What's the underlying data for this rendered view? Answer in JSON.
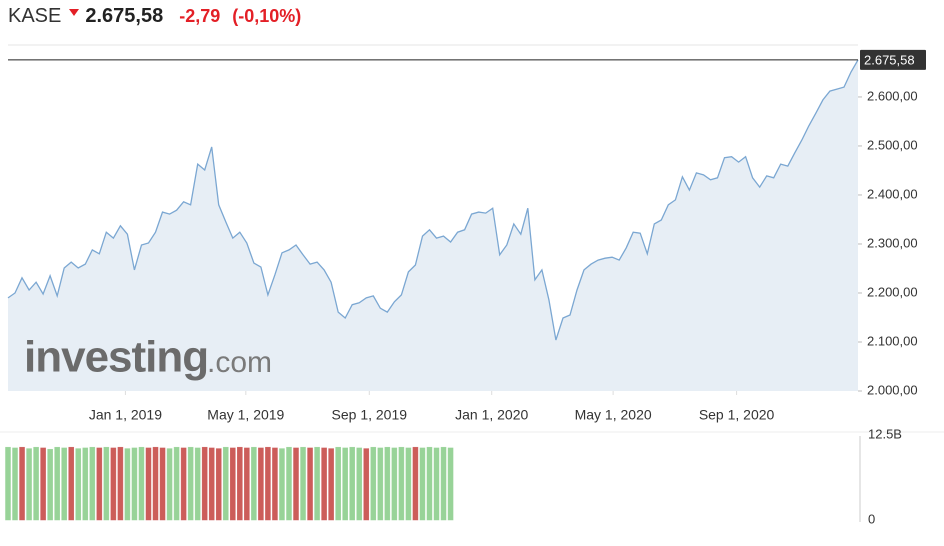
{
  "chart_data": {
    "type": "area",
    "title": "KASE",
    "last_price": {
      "value": 2675.58,
      "label": "2.675,58"
    },
    "change": "-2,79",
    "change_pct": "(-0,10%)",
    "watermark": {
      "brand": "investing",
      "suffix": ".com"
    },
    "x": [
      "2018-09-06",
      "2018-09-13",
      "2018-09-20",
      "2018-09-27",
      "2018-10-04",
      "2018-10-11",
      "2018-10-18",
      "2018-10-25",
      "2018-11-01",
      "2018-11-08",
      "2018-11-15",
      "2018-11-22",
      "2018-11-29",
      "2018-12-06",
      "2018-12-13",
      "2018-12-20",
      "2018-12-27",
      "2019-01-03",
      "2019-01-10",
      "2019-01-17",
      "2019-01-24",
      "2019-01-31",
      "2019-02-07",
      "2019-02-14",
      "2019-02-21",
      "2019-02-28",
      "2019-03-07",
      "2019-03-14",
      "2019-03-21",
      "2019-03-28",
      "2019-04-04",
      "2019-04-11",
      "2019-04-18",
      "2019-04-25",
      "2019-05-02",
      "2019-05-09",
      "2019-05-16",
      "2019-05-23",
      "2019-05-30",
      "2019-06-06",
      "2019-06-13",
      "2019-06-20",
      "2019-06-27",
      "2019-07-04",
      "2019-07-11",
      "2019-07-18",
      "2019-07-25",
      "2019-08-01",
      "2019-08-08",
      "2019-08-15",
      "2019-08-22",
      "2019-08-29",
      "2019-09-05",
      "2019-09-12",
      "2019-09-19",
      "2019-09-26",
      "2019-10-03",
      "2019-10-10",
      "2019-10-17",
      "2019-10-24",
      "2019-10-31",
      "2019-11-07",
      "2019-11-14",
      "2019-11-21",
      "2019-11-28",
      "2019-12-05",
      "2019-12-12",
      "2019-12-19",
      "2019-12-26",
      "2020-01-02",
      "2020-01-09",
      "2020-01-16",
      "2020-01-23",
      "2020-01-30",
      "2020-02-06",
      "2020-02-13",
      "2020-02-20",
      "2020-02-27",
      "2020-03-05",
      "2020-03-12",
      "2020-03-19",
      "2020-03-26",
      "2020-04-02",
      "2020-04-09",
      "2020-04-16",
      "2020-04-23",
      "2020-04-30",
      "2020-05-07",
      "2020-05-14",
      "2020-05-21",
      "2020-05-28",
      "2020-06-04",
      "2020-06-11",
      "2020-06-18",
      "2020-06-25",
      "2020-07-02",
      "2020-07-09",
      "2020-07-16",
      "2020-07-23",
      "2020-07-30",
      "2020-08-06",
      "2020-08-13",
      "2020-08-20",
      "2020-08-27",
      "2020-09-03",
      "2020-09-10",
      "2020-09-17",
      "2020-09-24",
      "2020-10-01",
      "2020-10-08",
      "2020-10-15",
      "2020-10-22",
      "2020-10-29",
      "2020-11-05",
      "2020-11-12",
      "2020-11-19",
      "2020-11-26",
      "2020-12-03",
      "2020-12-10",
      "2020-12-17",
      "2020-12-24",
      "2020-12-31"
    ],
    "series": [
      {
        "name": "KASE",
        "color": "#7ba7d2",
        "fill": "#e7eef5",
        "values": [
          2190,
          2200,
          2231,
          2206,
          2222,
          2198,
          2235,
          2194,
          2251,
          2263,
          2251,
          2259,
          2288,
          2280,
          2324,
          2312,
          2337,
          2320,
          2247,
          2298,
          2302,
          2324,
          2365,
          2361,
          2369,
          2386,
          2380,
          2463,
          2451,
          2498,
          2380,
          2345,
          2312,
          2324,
          2302,
          2261,
          2253,
          2196,
          2237,
          2282,
          2288,
          2298,
          2278,
          2259,
          2263,
          2247,
          2222,
          2161,
          2149,
          2176,
          2180,
          2190,
          2194,
          2169,
          2161,
          2182,
          2196,
          2243,
          2257,
          2316,
          2329,
          2312,
          2316,
          2304,
          2324,
          2329,
          2361,
          2365,
          2363,
          2373,
          2278,
          2298,
          2341,
          2320,
          2373,
          2227,
          2247,
          2186,
          2104,
          2149,
          2155,
          2206,
          2247,
          2259,
          2267,
          2271,
          2273,
          2267,
          2292,
          2324,
          2322,
          2280,
          2341,
          2349,
          2380,
          2390,
          2437,
          2410,
          2445,
          2441,
          2431,
          2435,
          2476,
          2478,
          2467,
          2478,
          2435,
          2416,
          2439,
          2435,
          2463,
          2459,
          2486,
          2512,
          2541,
          2567,
          2594,
          2612,
          2616,
          2620,
          2651,
          2675.58
        ]
      }
    ],
    "xlim": [
      "2018-09-06",
      "2020-12-31"
    ],
    "xticks": [
      {
        "value": "2019-01-01",
        "label": "Jan 1, 2019"
      },
      {
        "value": "2019-05-01",
        "label": "May 1, 2019"
      },
      {
        "value": "2019-09-01",
        "label": "Sep 1, 2019"
      },
      {
        "value": "2020-01-01",
        "label": "Jan 1, 2020"
      },
      {
        "value": "2020-05-01",
        "label": "May 1, 2020"
      },
      {
        "value": "2020-09-01",
        "label": "Sep 1, 2020"
      }
    ],
    "ylim": [
      2000,
      2706
    ],
    "yticks": [
      {
        "value": 2000,
        "label": "2.000,00"
      },
      {
        "value": 2100,
        "label": "2.100,00"
      },
      {
        "value": 2200,
        "label": "2.200,00"
      },
      {
        "value": 2300,
        "label": "2.300,00"
      },
      {
        "value": 2400,
        "label": "2.400,00"
      },
      {
        "value": 2500,
        "label": "2.500,00"
      },
      {
        "value": 2600,
        "label": "2.600,00"
      }
    ],
    "volume": {
      "type": "bar",
      "values": [
        10700000000,
        10600000000,
        10700000000,
        10500000000,
        10700000000,
        10600000000,
        10400000000,
        10700000000,
        10600000000,
        10700000000,
        10500000000,
        10600000000,
        10700000000,
        10600000000,
        10700000000,
        10600000000,
        10700000000,
        10500000000,
        10600000000,
        10700000000,
        10600000000,
        10700000000,
        10600000000,
        10500000000,
        10700000000,
        10600000000,
        10700000000,
        10600000000,
        10700000000,
        10600000000,
        10500000000,
        10700000000,
        10600000000,
        10700000000,
        10600000000,
        10700000000,
        10600000000,
        10700000000,
        10600000000,
        10500000000,
        10700000000,
        10600000000,
        10700000000,
        10600000000,
        10700000000,
        10600000000,
        10500000000,
        10700000000,
        10600000000,
        10700000000,
        10600000000,
        10500000000,
        10700000000,
        10600000000,
        10700000000,
        10600000000,
        10700000000,
        10600000000,
        10700000000,
        10600000000,
        10700000000,
        10600000000,
        10700000000,
        10600000000,
        null,
        null,
        null,
        null,
        null,
        null,
        null,
        null,
        null,
        null,
        null,
        null,
        null,
        null,
        null,
        null,
        null,
        null,
        null,
        null,
        null,
        null,
        null,
        null,
        null,
        null,
        null,
        null,
        null,
        null,
        null,
        null,
        null,
        null,
        null,
        null,
        null,
        null,
        null,
        null,
        null,
        null,
        null,
        null,
        null,
        null,
        null,
        null,
        null,
        null,
        null,
        null,
        null,
        null,
        null,
        null,
        null,
        null
      ],
      "colors": [
        "#98d398",
        "#98d398",
        "#cc5d5a",
        "#98d398",
        "#98d398",
        "#cc5d5a",
        "#98d398",
        "#98d398",
        "#98d398",
        "#cc5d5a",
        "#98d398",
        "#98d398",
        "#98d398",
        "#cc5d5a",
        "#98d398",
        "#cc5d5a",
        "#cc5d5a",
        "#98d398",
        "#98d398",
        "#98d398",
        "#cc5d5a",
        "#cc5d5a",
        "#cc5d5a",
        "#98d398",
        "#98d398",
        "#cc5d5a",
        "#98d398",
        "#98d398",
        "#cc5d5a",
        "#cc5d5a",
        "#cc5d5a",
        "#98d398",
        "#cc5d5a",
        "#cc5d5a",
        "#cc5d5a",
        "#98d398",
        "#cc5d5a",
        "#cc5d5a",
        "#cc5d5a",
        "#98d398",
        "#98d398",
        "#cc5d5a",
        "#98d398",
        "#cc5d5a",
        "#98d398",
        "#cc5d5a",
        "#cc5d5a",
        "#98d398",
        "#98d398",
        "#98d398",
        "#98d398",
        "#cc5d5a",
        "#98d398",
        "#98d398",
        "#98d398",
        "#98d398",
        "#98d398",
        "#98d398",
        "#cc5d5a",
        "#98d398",
        "#98d398",
        "#98d398",
        "#98d398",
        "#98d398",
        null,
        null,
        null,
        null,
        null,
        null,
        null,
        null,
        null,
        null,
        null,
        null,
        null,
        null,
        null,
        null,
        null,
        null,
        null,
        null,
        null,
        null,
        null,
        null,
        null,
        null,
        null,
        null,
        null,
        null,
        null,
        null,
        null,
        null,
        null,
        null,
        null,
        null,
        null,
        null,
        null,
        null,
        null,
        null,
        null,
        null,
        null,
        null,
        null,
        null,
        null,
        null,
        null,
        null,
        null,
        null,
        null,
        null
      ],
      "ylim": [
        0,
        12500000000
      ],
      "yticks": [
        0,
        {
          "value": 12500000000,
          "label": "12.5B"
        }
      ]
    }
  }
}
